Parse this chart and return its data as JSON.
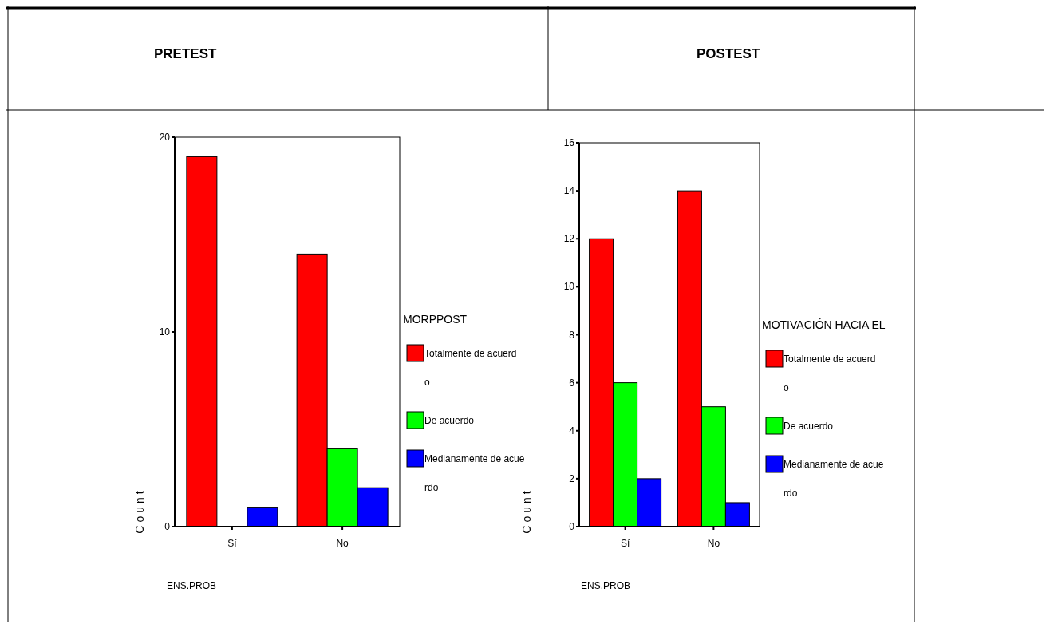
{
  "chart_data": [
    {
      "type": "bar",
      "title": "PRETEST",
      "xlabel": "ENS.PROB",
      "ylabel": "Count",
      "legend_title": "MORPPOST",
      "legend": "right",
      "categories": [
        "Sí",
        "No"
      ],
      "ylim": [
        0,
        20
      ],
      "yticks": [
        0,
        10,
        20
      ],
      "series": [
        {
          "name": "Totalmente de acuerdo",
          "color": "#ff0000",
          "values": [
            19,
            14
          ]
        },
        {
          "name": "De acuerdo",
          "color": "#00ff00",
          "values": [
            0,
            4
          ]
        },
        {
          "name": "Medianamente de acuerdo",
          "color": "#0000ff",
          "values": [
            1,
            2
          ]
        }
      ]
    },
    {
      "type": "bar",
      "title": "POSTEST",
      "xlabel": "ENS.PROB",
      "ylabel": "Count",
      "legend_title": "MOTIVACIÓN HACIA EL",
      "legend": "right",
      "categories": [
        "Sí",
        "No"
      ],
      "ylim": [
        0,
        16
      ],
      "yticks": [
        0,
        2,
        4,
        6,
        8,
        10,
        12,
        14,
        16
      ],
      "series": [
        {
          "name": "Totalmente de acuerdo",
          "color": "#ff0000",
          "values": [
            12,
            14
          ]
        },
        {
          "name": "De acuerdo",
          "color": "#00ff00",
          "values": [
            6,
            5
          ]
        },
        {
          "name": "Medianamente de acuerdo",
          "color": "#0000ff",
          "values": [
            2,
            1
          ]
        }
      ]
    }
  ]
}
